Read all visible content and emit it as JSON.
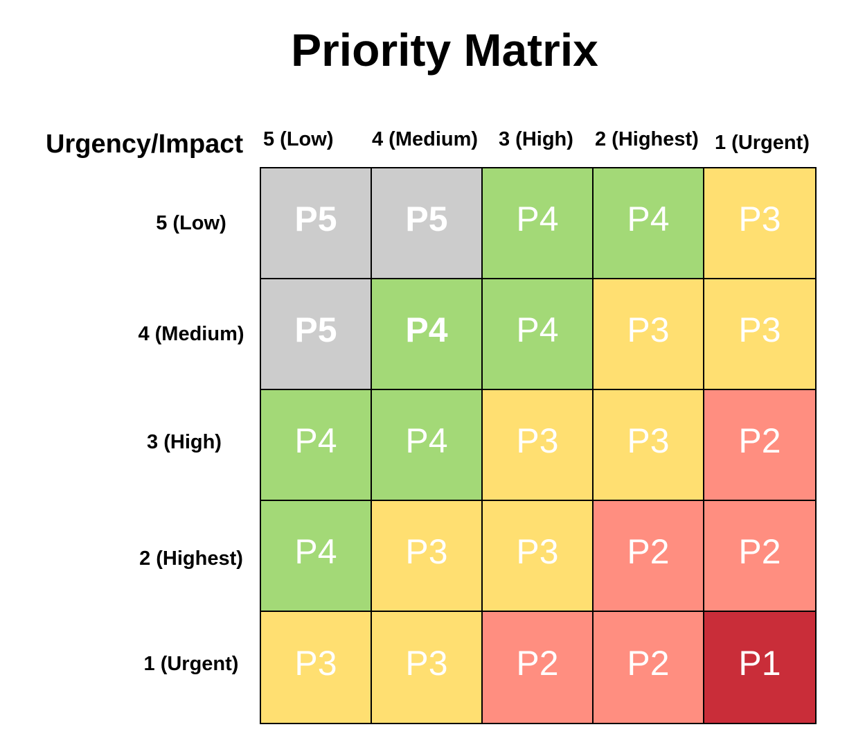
{
  "title": "Priority Matrix",
  "corner_label": "Urgency/Impact",
  "columns": [
    "5 (Low)",
    "4 (Medium)",
    "3 (High)",
    "2 (Highest)",
    "1 (Urgent)"
  ],
  "rows": [
    "5 (Low)",
    "4 (Medium)",
    "3 (High)",
    "2 (Highest)",
    "1 (Urgent)"
  ],
  "cells": [
    [
      "P5",
      "P5",
      "P4",
      "P4",
      "P3"
    ],
    [
      "P5",
      "P4",
      "P4",
      "P3",
      "P3"
    ],
    [
      "P4",
      "P4",
      "P3",
      "P3",
      "P2"
    ],
    [
      "P4",
      "P3",
      "P3",
      "P2",
      "P2"
    ],
    [
      "P3",
      "P3",
      "P2",
      "P2",
      "P1"
    ]
  ],
  "colors": {
    "P5": "#cccccc",
    "P4": "#a3d977",
    "P3": "#ffdf71",
    "P2": "#ff8e80",
    "P1": "#c92d39"
  }
}
